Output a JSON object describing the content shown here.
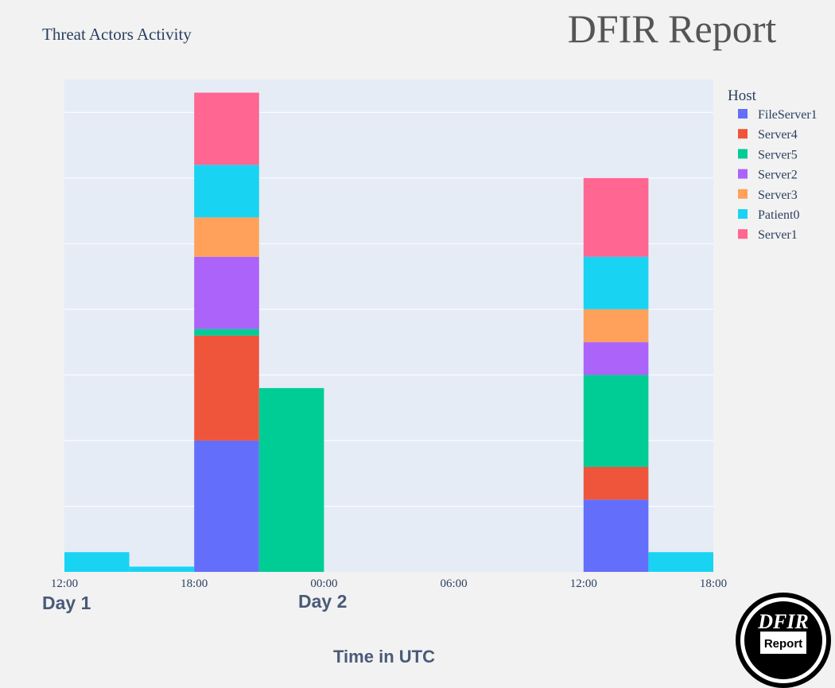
{
  "header": {
    "chart_title": "Threat Actors Activity",
    "brand_title": "DFIR Report"
  },
  "logo": {
    "top_text": "DFIR",
    "bottom_text": "Report"
  },
  "day_labels": [
    "Day 1",
    "Day 2"
  ],
  "colors": {
    "plot_bg": "#e5ecf6",
    "page_bg": "#f2f2f2",
    "grid": "#ffffff"
  },
  "chart_data": {
    "type": "bar",
    "stacked": true,
    "title": "Threat Actors Activity",
    "xlabel": "Time in UTC",
    "ylabel": "",
    "x_tick_labels": [
      "12:00",
      "18:00",
      "00:00",
      "06:00",
      "12:00",
      "18:00"
    ],
    "x_range_hours": [
      0,
      30
    ],
    "bin_width_hours": 3,
    "bins_start_hours": [
      0,
      3,
      6,
      9,
      12,
      15,
      18,
      21,
      24,
      27
    ],
    "ylim": [
      0,
      7.5
    ],
    "grid": true,
    "legend_title": "Host",
    "legend_position": "top-right",
    "series": [
      {
        "name": "FileServer1",
        "color": "#636efa",
        "values": [
          0,
          0,
          2.0,
          0,
          0,
          0,
          0,
          0,
          1.1,
          0
        ]
      },
      {
        "name": "Server4",
        "color": "#ef553b",
        "values": [
          0,
          0,
          1.6,
          0,
          0,
          0,
          0,
          0,
          0.5,
          0
        ]
      },
      {
        "name": "Server5",
        "color": "#00cc96",
        "values": [
          0,
          0,
          0.1,
          2.8,
          0,
          0,
          0,
          0,
          1.4,
          0
        ]
      },
      {
        "name": "Server2",
        "color": "#ab63fa",
        "values": [
          0,
          0,
          1.1,
          0,
          0,
          0,
          0,
          0,
          0.5,
          0
        ]
      },
      {
        "name": "Server3",
        "color": "#ffa15a",
        "values": [
          0,
          0,
          0.6,
          0,
          0,
          0,
          0,
          0,
          0.5,
          0
        ]
      },
      {
        "name": "Patient0",
        "color": "#19d3f3",
        "values": [
          0.3,
          0.08,
          0.8,
          0,
          0,
          0,
          0,
          0,
          0.8,
          0.3
        ]
      },
      {
        "name": "Server1",
        "color": "#ff6692",
        "values": [
          0,
          0,
          1.1,
          0,
          0,
          0,
          0,
          0,
          1.2,
          0
        ]
      }
    ]
  }
}
